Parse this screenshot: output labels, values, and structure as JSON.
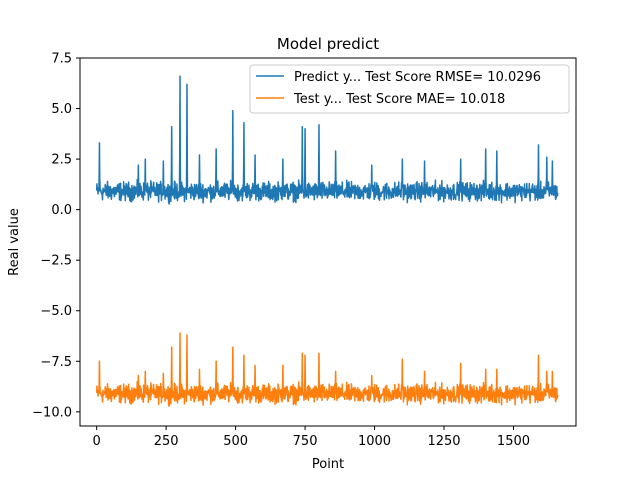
{
  "chart_data": {
    "type": "line",
    "title": "Model predict",
    "xlabel": "Point",
    "ylabel": "Real value",
    "xlim": [
      -60,
      1725
    ],
    "ylim": [
      -10.7,
      7.5
    ],
    "xticks": [
      0,
      250,
      500,
      750,
      1000,
      1250,
      1500
    ],
    "xtick_labels": [
      "0",
      "250",
      "500",
      "750",
      "1000",
      "1250",
      "1500"
    ],
    "yticks": [
      -10.0,
      -7.5,
      -5.0,
      -2.5,
      0.0,
      2.5,
      5.0,
      7.5
    ],
    "ytick_labels": [
      "−10.0",
      "−7.5",
      "−5.0",
      "−2.5",
      "0.0",
      "2.5",
      "5.0",
      "7.5"
    ],
    "legend_position": "top-right",
    "n_points": 1660,
    "series": [
      {
        "name": "Predict y... Test Score RMSE= 10.0296",
        "color": "#1f77b4",
        "offset": 0.0,
        "base": 0.9,
        "noise": 0.22,
        "spikes": [
          [
            10,
            3.3
          ],
          [
            150,
            2.2
          ],
          [
            175,
            2.5
          ],
          [
            240,
            2.4
          ],
          [
            270,
            4.1
          ],
          [
            300,
            6.6
          ],
          [
            325,
            6.2
          ],
          [
            370,
            2.7
          ],
          [
            430,
            3.0
          ],
          [
            490,
            4.9
          ],
          [
            530,
            4.3
          ],
          [
            570,
            2.7
          ],
          [
            670,
            2.5
          ],
          [
            740,
            4.1
          ],
          [
            750,
            4.0
          ],
          [
            800,
            4.2
          ],
          [
            860,
            2.9
          ],
          [
            990,
            2.2
          ],
          [
            1100,
            2.5
          ],
          [
            1180,
            2.4
          ],
          [
            1310,
            2.5
          ],
          [
            1400,
            3.0
          ],
          [
            1440,
            2.9
          ],
          [
            1590,
            3.2
          ],
          [
            1620,
            2.6
          ],
          [
            1640,
            2.4
          ]
        ]
      },
      {
        "name": "Test y... Test Score MAE= 10.018",
        "color": "#ff7f0e",
        "offset": -10.0,
        "base": 0.9,
        "noise": 0.22,
        "spikes": [
          [
            10,
            2.5
          ],
          [
            150,
            1.8
          ],
          [
            175,
            2.0
          ],
          [
            240,
            1.9
          ],
          [
            270,
            3.2
          ],
          [
            300,
            3.9
          ],
          [
            325,
            3.8
          ],
          [
            370,
            2.1
          ],
          [
            430,
            2.5
          ],
          [
            490,
            3.2
          ],
          [
            530,
            2.8
          ],
          [
            570,
            2.3
          ],
          [
            670,
            2.3
          ],
          [
            740,
            2.9
          ],
          [
            750,
            2.8
          ],
          [
            800,
            2.9
          ],
          [
            860,
            2.0
          ],
          [
            990,
            1.8
          ],
          [
            1100,
            2.6
          ],
          [
            1180,
            2.0
          ],
          [
            1310,
            2.4
          ],
          [
            1400,
            2.1
          ],
          [
            1440,
            2.1
          ],
          [
            1590,
            2.8
          ],
          [
            1620,
            2.0
          ],
          [
            1640,
            2.0
          ]
        ]
      }
    ]
  }
}
